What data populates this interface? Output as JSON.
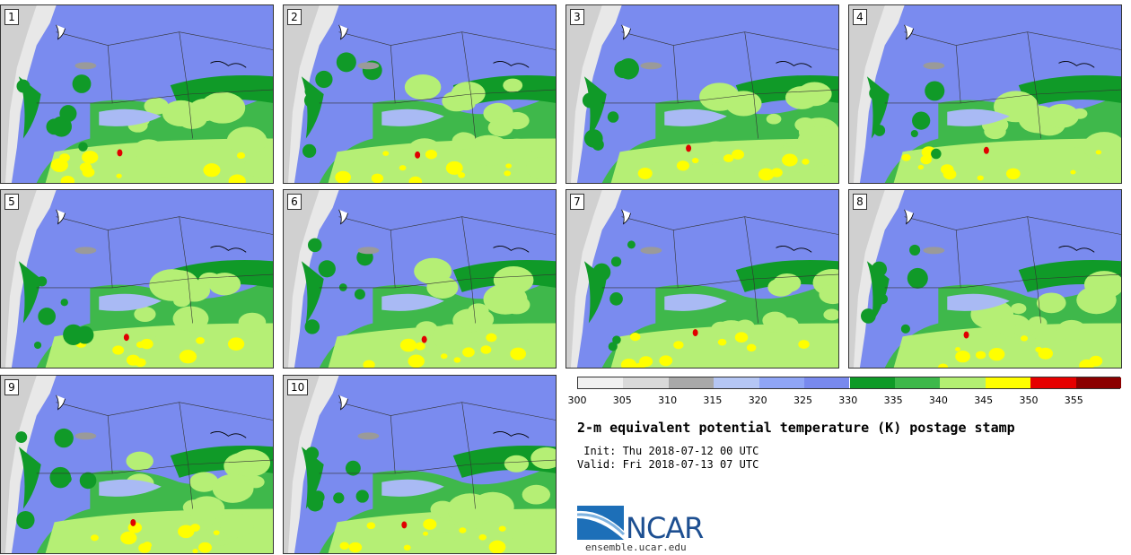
{
  "panels": [
    {
      "label": "1"
    },
    {
      "label": "2"
    },
    {
      "label": "3"
    },
    {
      "label": "4"
    },
    {
      "label": "5"
    },
    {
      "label": "6"
    },
    {
      "label": "7"
    },
    {
      "label": "8"
    },
    {
      "label": "9"
    },
    {
      "label": "10"
    }
  ],
  "colorbar": {
    "ticks": [
      "300",
      "305",
      "310",
      "315",
      "320",
      "325",
      "330",
      "335",
      "340",
      "345",
      "350",
      "355"
    ],
    "colors": [
      "#f0f0f0",
      "#d9d9d9",
      "#a8a8a8",
      "#b5c6f4",
      "#8fa5f6",
      "#7889ee",
      "#0e9a27",
      "#3db84a",
      "#b3ef72",
      "#ffff00",
      "#e60000",
      "#8b0000"
    ]
  },
  "map_colors": {
    "ocean": "#e8e8e8",
    "land_cool": "#7a8bef",
    "land_cooler": "#a9baf4",
    "green_dark": "#109a28",
    "green": "#3fb84b",
    "green_light": "#b5ef75",
    "yellow": "#ffff00",
    "red": "#e00000",
    "gray": "#9a9a9a"
  },
  "title": "2-m equivalent potential temperature (K) postage stamp",
  "init": " Init: Thu 2018-07-12 00 UTC",
  "valid": "Valid: Fri 2018-07-13 07 UTC",
  "logo": {
    "name": "NCAR",
    "url": "ensemble.ucar.edu"
  }
}
